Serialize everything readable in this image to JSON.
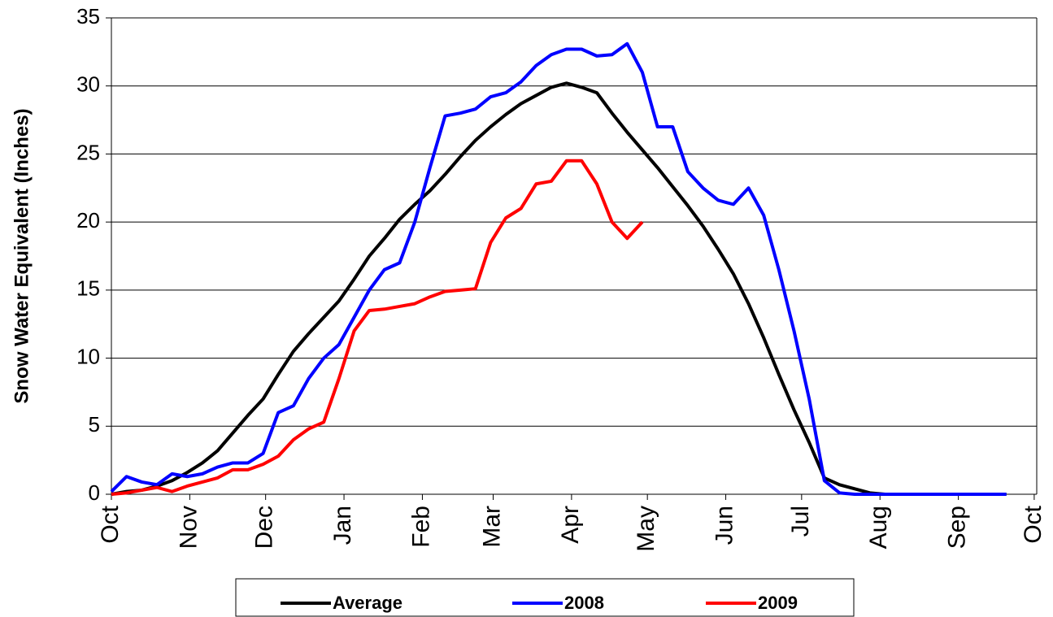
{
  "chart_data": {
    "type": "line",
    "ylabel": "Snow Water Equivalent (Inches)",
    "x": [
      0,
      6,
      12,
      18,
      24,
      30,
      36,
      42,
      48,
      54,
      60,
      66,
      72,
      78,
      84,
      90,
      96,
      102,
      108,
      114,
      120,
      126,
      132,
      138,
      144,
      150,
      156,
      162,
      168,
      174,
      180,
      186,
      192,
      198,
      204,
      210,
      216,
      222,
      228,
      234,
      240,
      246,
      252,
      258,
      264,
      270,
      276,
      282,
      288,
      294,
      300,
      306,
      312,
      318,
      324,
      330,
      336,
      342,
      348,
      354,
      360
    ],
    "series": [
      {
        "name": "Average",
        "color": "#000000",
        "values": [
          0,
          0.2,
          0.3,
          0.6,
          1.0,
          1.6,
          2.3,
          3.2,
          4.5,
          5.8,
          7.0,
          8.8,
          10.5,
          11.8,
          13.0,
          14.2,
          15.8,
          17.5,
          18.8,
          20.2,
          21.3,
          22.3,
          23.5,
          24.8,
          26.0,
          27.0,
          27.9,
          28.7,
          29.3,
          29.9,
          30.2,
          29.9,
          29.5,
          28.0,
          26.6,
          25.3,
          24.0,
          22.6,
          21.2,
          19.7,
          18.0,
          16.2,
          14.0,
          11.5,
          8.8,
          6.2,
          3.8,
          1.2,
          0.7,
          0.4,
          0.1,
          0,
          0,
          0,
          0,
          0,
          0,
          0,
          0,
          0,
          null
        ]
      },
      {
        "name": "2008",
        "color": "#0000ff",
        "values": [
          0.2,
          1.3,
          0.9,
          0.7,
          1.5,
          1.3,
          1.5,
          2.0,
          2.3,
          2.3,
          3.0,
          6.0,
          6.5,
          8.5,
          10.0,
          11.0,
          13.0,
          15.0,
          16.5,
          17.0,
          20.0,
          24.0,
          27.8,
          28.0,
          28.3,
          29.2,
          29.5,
          30.3,
          31.5,
          32.3,
          32.7,
          32.7,
          32.2,
          32.3,
          33.1,
          31.0,
          27.0,
          27.0,
          23.7,
          22.5,
          21.6,
          21.3,
          22.5,
          20.5,
          16.5,
          12.0,
          7.0,
          1.0,
          0.1,
          0,
          0,
          0,
          0,
          0,
          0,
          0,
          0,
          0,
          0,
          0,
          null
        ]
      },
      {
        "name": "2009",
        "color": "#ff0000",
        "values": [
          0,
          0.1,
          0.3,
          0.5,
          0.2,
          0.6,
          0.9,
          1.2,
          1.8,
          1.8,
          2.2,
          2.8,
          4.0,
          4.8,
          5.3,
          8.5,
          12.0,
          13.5,
          13.6,
          13.8,
          14.0,
          14.5,
          14.9,
          15.0,
          15.1,
          18.5,
          20.3,
          21.0,
          22.8,
          23.0,
          24.5,
          24.5,
          22.8,
          20.0,
          18.8,
          20.0,
          null,
          null,
          null,
          null,
          null,
          null,
          null,
          null,
          null,
          null,
          null,
          null,
          null,
          null,
          null,
          null,
          null,
          null,
          null,
          null,
          null,
          null,
          null,
          null,
          null
        ]
      }
    ],
    "xlim": [
      0,
      366
    ],
    "xticks": [
      {
        "value": 0,
        "label": "Oct"
      },
      {
        "value": 31,
        "label": "Nov"
      },
      {
        "value": 61,
        "label": "Dec"
      },
      {
        "value": 92,
        "label": "Jan"
      },
      {
        "value": 123,
        "label": "Feb"
      },
      {
        "value": 151,
        "label": "Mar"
      },
      {
        "value": 182,
        "label": "Apr"
      },
      {
        "value": 212,
        "label": "May"
      },
      {
        "value": 243,
        "label": "Jun"
      },
      {
        "value": 273,
        "label": "Jul"
      },
      {
        "value": 304,
        "label": "Aug"
      },
      {
        "value": 335,
        "label": "Sep"
      },
      {
        "value": 365,
        "label": "Oct"
      }
    ],
    "ylim": [
      0,
      35
    ],
    "yticks": [
      0,
      5,
      10,
      15,
      20,
      25,
      30,
      35
    ],
    "grid": true,
    "legend": "bottom"
  }
}
